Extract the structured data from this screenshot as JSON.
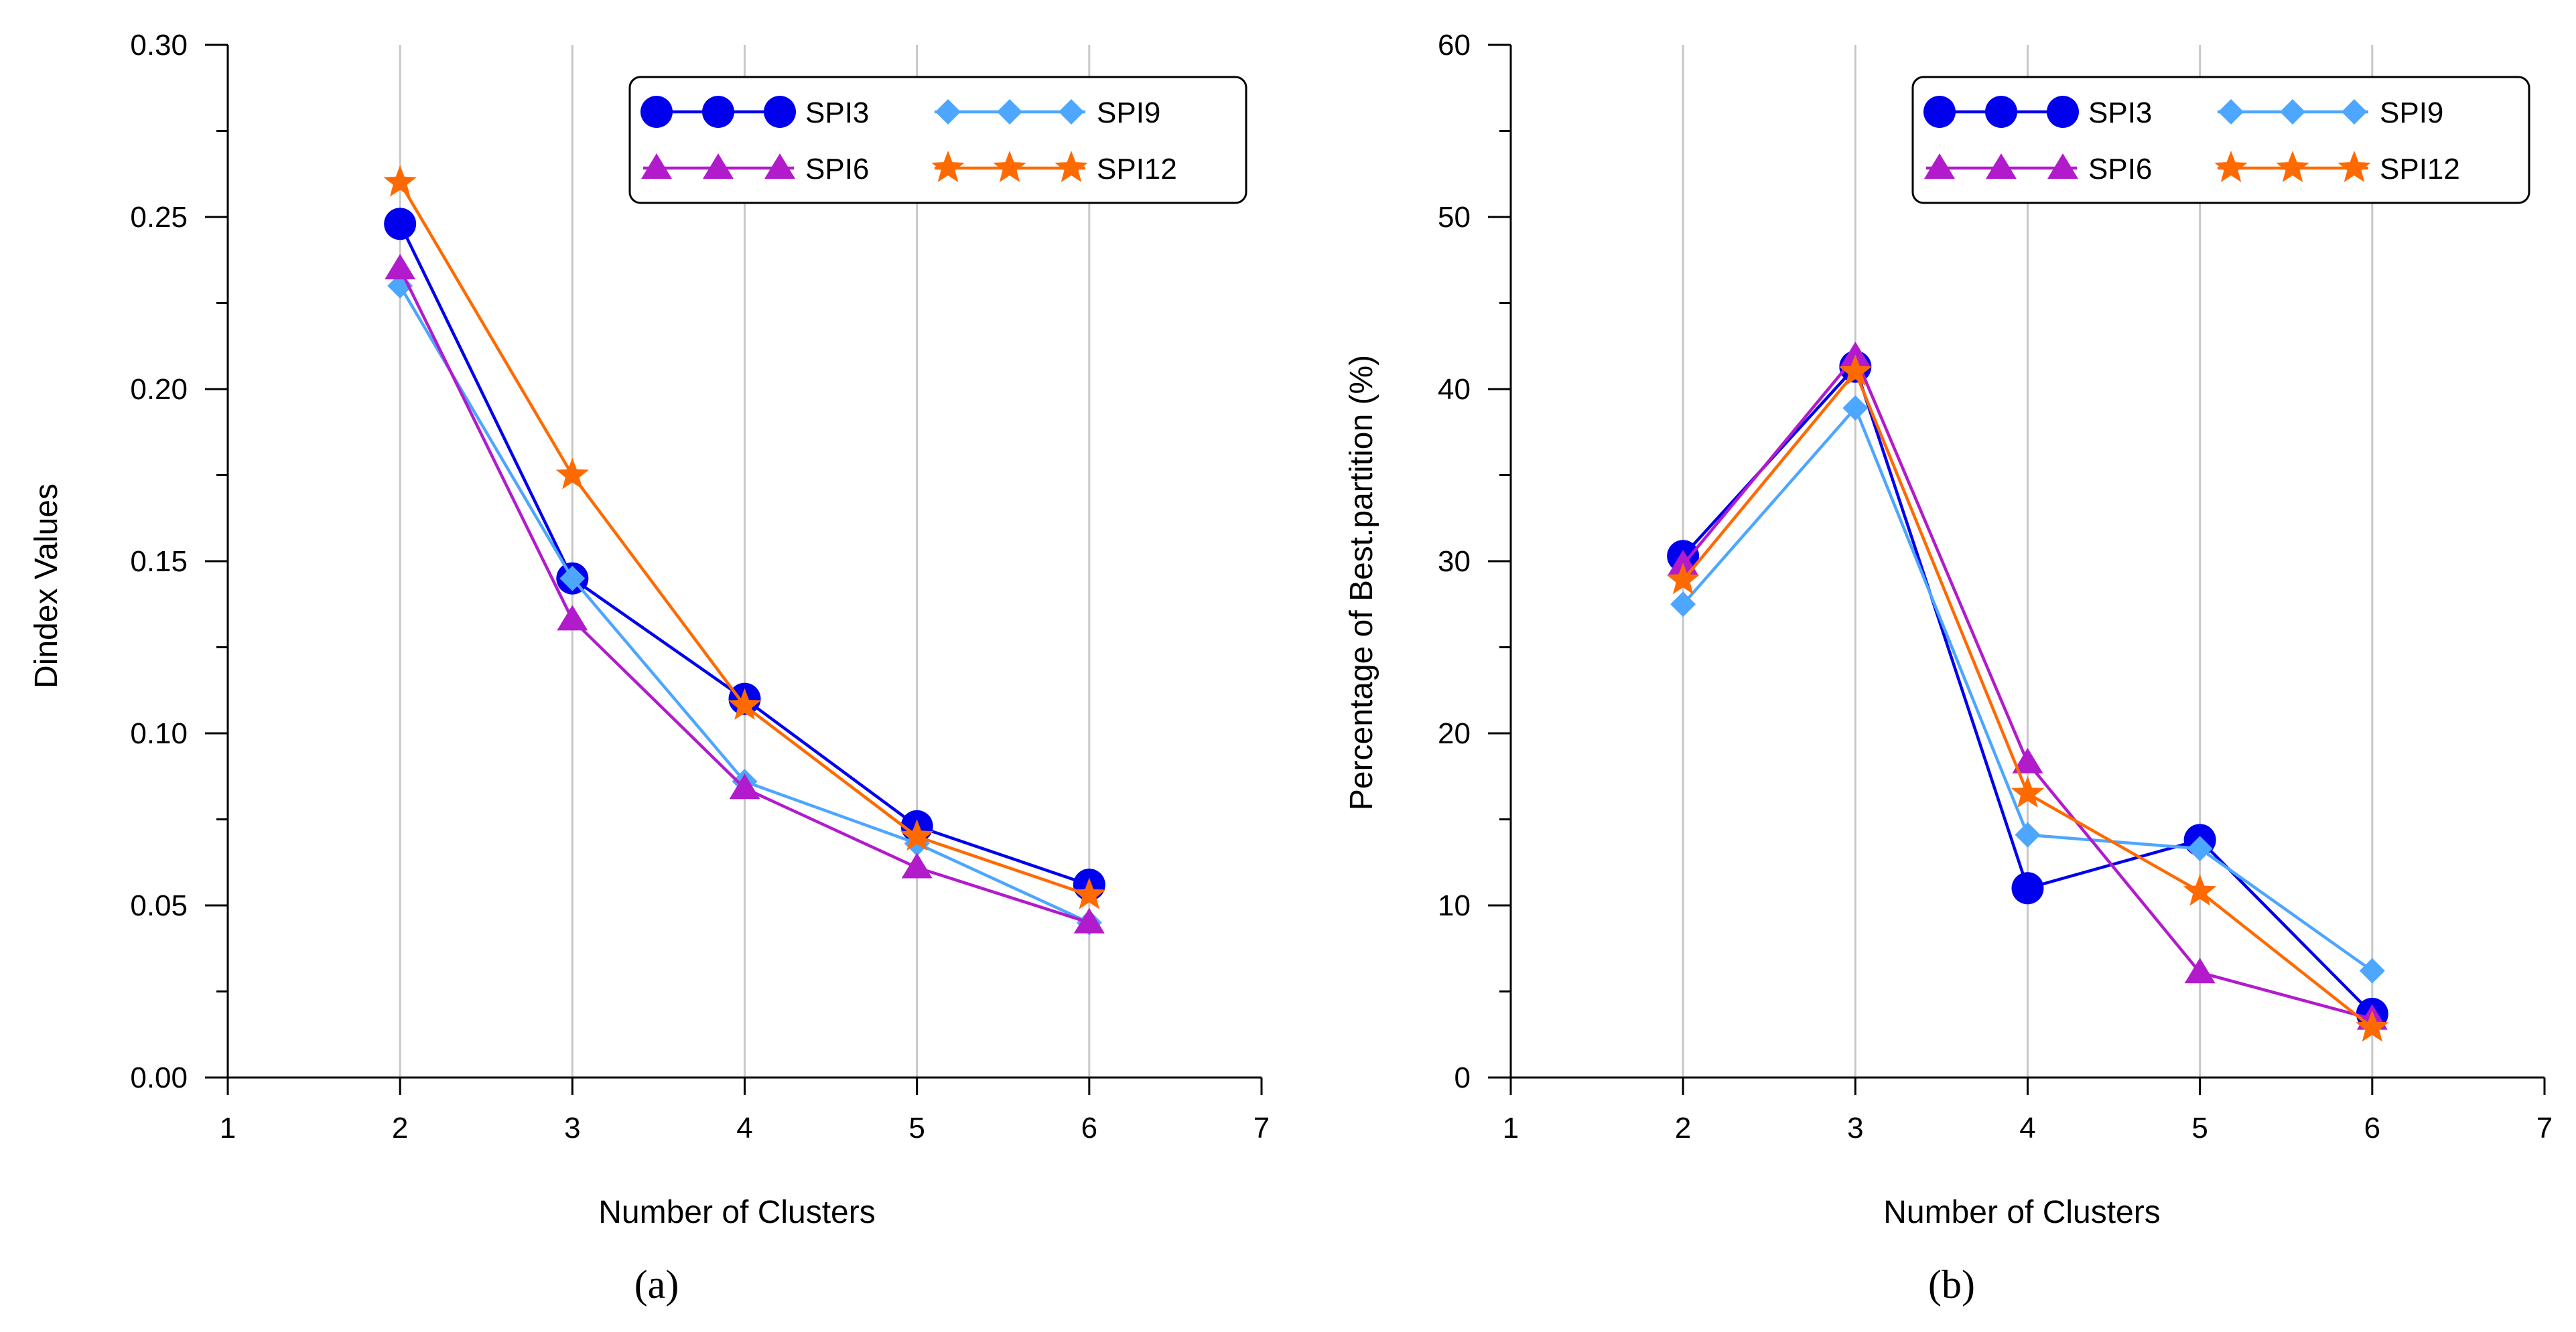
{
  "chart_data": [
    {
      "type": "line",
      "panel_label": "(a)",
      "xlabel": "Number of Clusters",
      "ylabel": "Dindex Values",
      "xlim": [
        1,
        7
      ],
      "ylim": [
        0,
        0.3
      ],
      "xticks": [
        "1",
        "2",
        "3",
        "4",
        "5",
        "6",
        "7"
      ],
      "yticks": [
        "0.00",
        "0.05",
        "0.10",
        "0.15",
        "0.20",
        "0.25",
        "0.30"
      ],
      "grid": "vertical",
      "legend_position": "top-right",
      "x": [
        2,
        3,
        4,
        5,
        6
      ],
      "series": [
        {
          "name": "SPI3",
          "values": [
            0.248,
            0.145,
            0.11,
            0.073,
            0.056
          ],
          "color": "#0000ee",
          "marker": "circle"
        },
        {
          "name": "SPI9",
          "values": [
            0.23,
            0.145,
            0.086,
            0.068,
            0.045
          ],
          "color": "#4da6ff",
          "marker": "diamond"
        },
        {
          "name": "SPI6",
          "values": [
            0.235,
            0.133,
            0.084,
            0.061,
            0.045
          ],
          "color": "#b21bcc",
          "marker": "triangle"
        },
        {
          "name": "SPI12",
          "values": [
            0.26,
            0.175,
            0.108,
            0.07,
            0.053
          ],
          "color": "#ff6a00",
          "marker": "star"
        }
      ]
    },
    {
      "type": "line",
      "panel_label": "(b)",
      "xlabel": "Number of Clusters",
      "ylabel": "Percentage of Best.partition (%)",
      "xlim": [
        1,
        7
      ],
      "ylim": [
        0,
        60
      ],
      "xticks": [
        "1",
        "2",
        "3",
        "4",
        "5",
        "6",
        "7"
      ],
      "yticks": [
        "0",
        "10",
        "20",
        "30",
        "40",
        "50",
        "60"
      ],
      "grid": "vertical",
      "legend_position": "top-right",
      "x": [
        2,
        3,
        4,
        5,
        6
      ],
      "series": [
        {
          "name": "SPI3",
          "values": [
            30.3,
            41.3,
            11.0,
            13.8,
            3.7
          ],
          "color": "#0000ee",
          "marker": "circle"
        },
        {
          "name": "SPI9",
          "values": [
            27.5,
            38.9,
            14.1,
            13.3,
            6.2
          ],
          "color": "#4da6ff",
          "marker": "diamond"
        },
        {
          "name": "SPI6",
          "values": [
            29.8,
            41.9,
            18.3,
            6.1,
            3.4
          ],
          "color": "#b21bcc",
          "marker": "triangle"
        },
        {
          "name": "SPI12",
          "values": [
            28.9,
            41.0,
            16.5,
            10.8,
            2.9
          ],
          "color": "#ff6a00",
          "marker": "star"
        }
      ]
    }
  ]
}
